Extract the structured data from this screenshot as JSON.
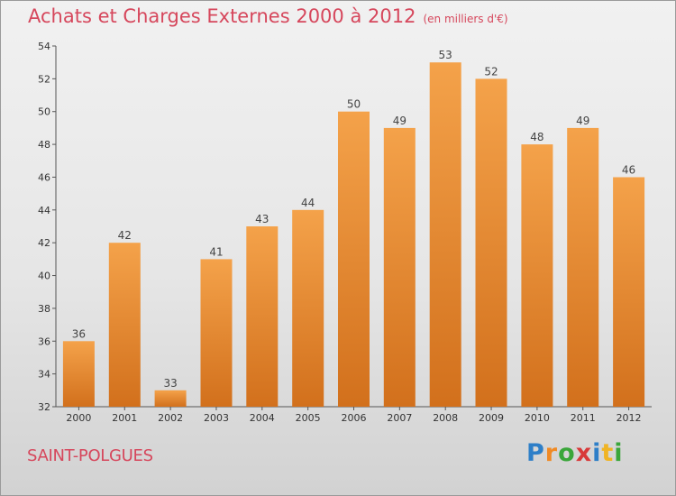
{
  "chart_data": {
    "type": "bar",
    "title": "Achats et Charges Externes 2000 à 2012",
    "unit": "(en milliers d'€)",
    "categories": [
      "2000",
      "2001",
      "2002",
      "2003",
      "2004",
      "2005",
      "2006",
      "2007",
      "2008",
      "2009",
      "2010",
      "2011",
      "2012"
    ],
    "values": [
      36,
      42,
      33,
      41,
      43,
      44,
      50,
      49,
      53,
      52,
      48,
      49,
      46
    ],
    "ylim": [
      32,
      54
    ],
    "yticks": [
      32,
      34,
      36,
      38,
      40,
      42,
      44,
      46,
      48,
      50,
      52,
      54
    ],
    "grid": false,
    "bar_color": "#f4a24a",
    "bar_color_dark": "#d2701c"
  },
  "location": "SAINT-POLGUES",
  "logo": {
    "text": "Proxiti",
    "letters": [
      "P",
      "r",
      "o",
      "x",
      "i",
      "t",
      "i"
    ],
    "colors": [
      "#2e7fc8",
      "#f08a24",
      "#3aa63a",
      "#d83a3a",
      "#2e7fc8",
      "#f0b424",
      "#3aa63a"
    ]
  }
}
